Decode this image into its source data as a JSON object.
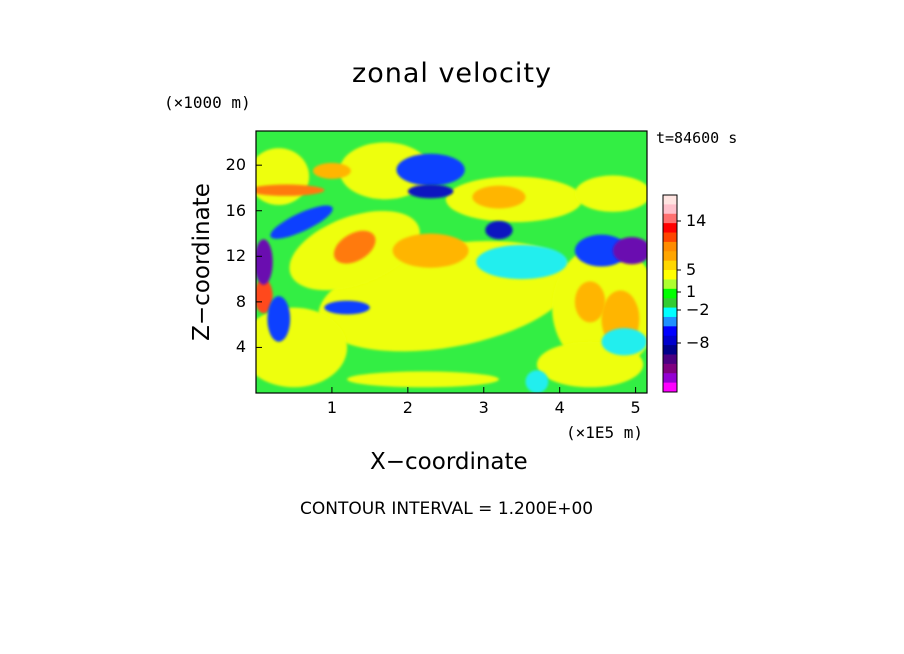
{
  "chart_data": {
    "type": "heatmap",
    "title": "zonal velocity",
    "xlabel": "X−coordinate",
    "ylabel": "Z−coordinate",
    "x_unit": "(×1E5 m)",
    "y_unit": "(×1000 m)",
    "time_label": "t=84600 s",
    "contour_note": "CONTOUR INTERVAL = 1.200E+00",
    "x_ticks": [
      "1",
      "2",
      "3",
      "4",
      "5"
    ],
    "y_ticks": [
      "20",
      "16",
      "12",
      "8",
      "4"
    ],
    "xlim": [
      0,
      5.15
    ],
    "ylim": [
      0,
      23
    ],
    "colorbar": {
      "tick_labels": [
        "14",
        "5",
        "1",
        "−2",
        "−8"
      ],
      "tick_values": [
        14,
        5,
        1,
        -2,
        -8
      ],
      "colors_top_to_bottom": [
        "#ffe4e1",
        "#ffc0cb",
        "#ff7070",
        "#ff0000",
        "#ff4500",
        "#ff8c00",
        "#ffa500",
        "#ffd700",
        "#ffff00",
        "#adff2f",
        "#00ff00",
        "#32cd32",
        "#00ffff",
        "#1e90ff",
        "#0000ff",
        "#0000cd",
        "#00008b",
        "#4b0082",
        "#800080",
        "#9400d3",
        "#ff00ff"
      ]
    },
    "palette": {
      "background_green": "#33ee44",
      "yellow": "#eeff11",
      "orange": "#ffb500",
      "dark_orange": "#ff7a10",
      "red": "#ff4a1a",
      "cyan": "#22eeee",
      "blue": "#1040ff",
      "navy": "#0818c0",
      "purple": "#6a10b0"
    }
  }
}
